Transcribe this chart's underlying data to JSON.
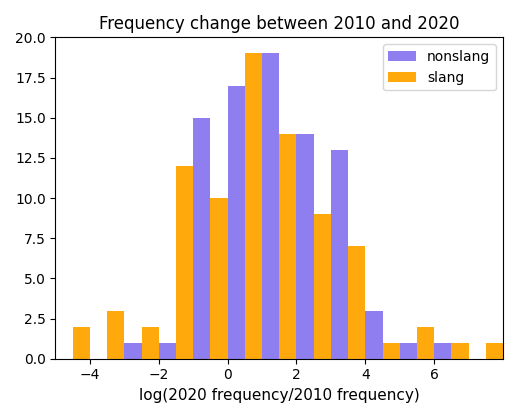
{
  "title": "Frequency change between 2010 and 2020",
  "xlabel": "log(2020 frequency/2010 frequency)",
  "nonslang_color": "#7b68ee",
  "slang_color": "#ffa500",
  "legend_labels": [
    "nonslang",
    "slang"
  ],
  "bin_edges": [
    -5,
    -4,
    -3,
    -2,
    -1,
    0,
    1,
    2,
    3,
    4,
    5,
    6,
    7,
    8
  ],
  "nonslang_counts": [
    0,
    0,
    1,
    1,
    15,
    17,
    19,
    14,
    13,
    3,
    1,
    1,
    0
  ],
  "slang_counts": [
    2,
    3,
    2,
    12,
    10,
    19,
    14,
    9,
    7,
    1,
    2,
    1,
    1
  ],
  "xlim": [
    -5,
    8
  ],
  "ylim": [
    0,
    20
  ],
  "yticks": [
    0.0,
    2.5,
    5.0,
    7.5,
    10.0,
    12.5,
    15.0,
    17.5,
    20.0
  ],
  "xticks": [
    -4,
    -2,
    0,
    2,
    4,
    6
  ]
}
